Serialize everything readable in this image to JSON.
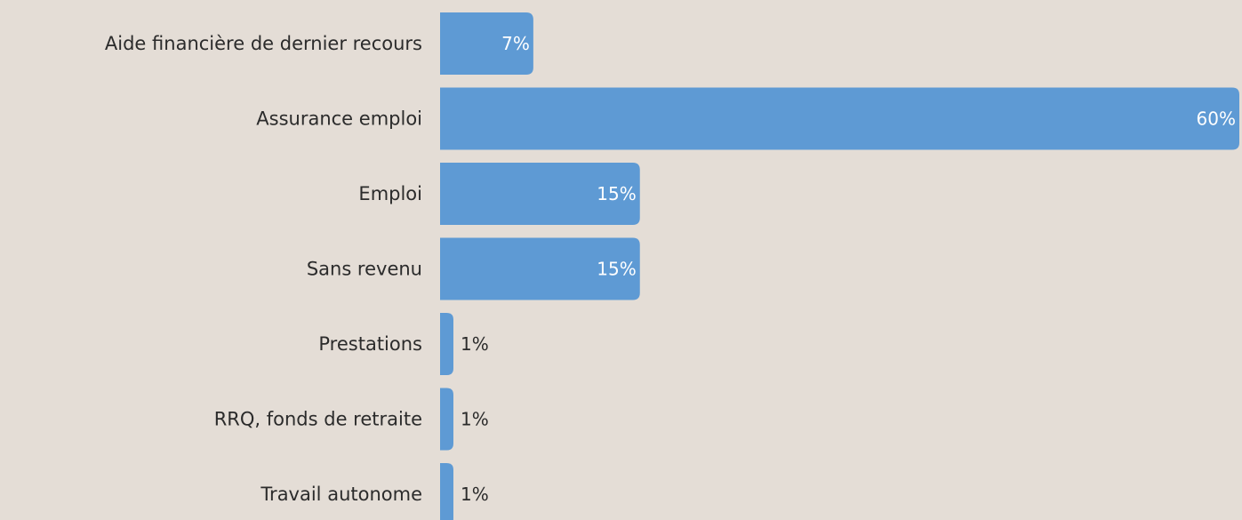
{
  "chart_data": {
    "type": "bar",
    "orientation": "horizontal",
    "categories": [
      "Aide financière de dernier recours",
      "Assurance emploi",
      "Emploi",
      "Sans revenu",
      "Prestations",
      "RRQ, fonds de retraite",
      "Travail autonome"
    ],
    "values": [
      7,
      60,
      15,
      15,
      1,
      1,
      1
    ],
    "value_labels": [
      "7%",
      "60%",
      "15%",
      "15%",
      "1%",
      "1%",
      "1%"
    ],
    "unit": "%",
    "title": "",
    "xlabel": "",
    "ylabel": "",
    "xlim": [
      0,
      60
    ],
    "grid": false,
    "legend": "none",
    "colors": {
      "bar": "#5e9ad4",
      "background": "#e4ddd6",
      "label_inside": "#ffffff",
      "label_outside": "#2b2b2b",
      "category_text": "#2b2b2b"
    }
  }
}
